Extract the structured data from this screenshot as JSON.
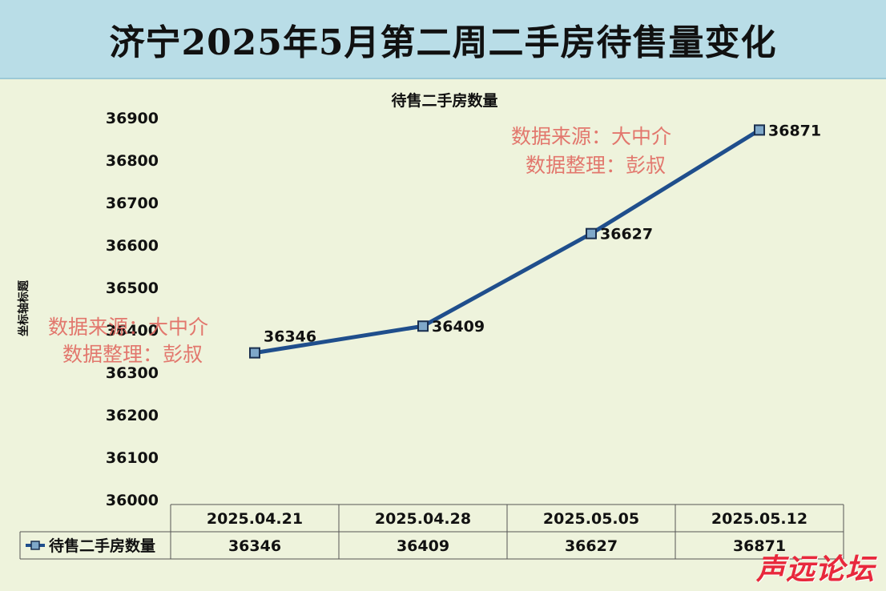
{
  "page": {
    "title": "济宁2025年5月第二周二手房待售量变化"
  },
  "watermarks": [
    {
      "line1": "数据来源：大中介",
      "line2": "数据整理：彭叔"
    },
    {
      "line1": "数据来源：大中介",
      "line2": "数据整理：彭叔"
    }
  ],
  "brand": "声远论坛",
  "chart_data": {
    "type": "line",
    "title": "待售二手房数量",
    "xlabel": "",
    "ylabel": "坐标轴标题",
    "ylim": [
      36000,
      36900
    ],
    "y_ticks": [
      "36900",
      "36800",
      "36700",
      "36600",
      "36500",
      "36400",
      "36300",
      "36200",
      "36100",
      "36000"
    ],
    "categories": [
      "2025.04.21",
      "2025.04.28",
      "2025.05.05",
      "2025.05.12"
    ],
    "series": [
      {
        "name": "待售二手房数量",
        "values": [
          36346,
          36409,
          36627,
          36871
        ],
        "labels": [
          "36346",
          "36409",
          "36627",
          "36871"
        ]
      }
    ],
    "data_table": true,
    "line_color": "#1f4e8c",
    "marker_color": "#7fa8c9"
  }
}
